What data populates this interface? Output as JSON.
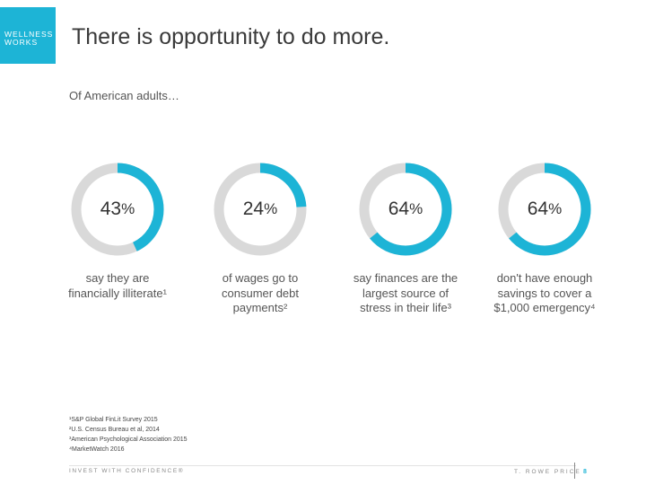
{
  "brand": {
    "line1": "WELLNESS",
    "line2": "WORKS"
  },
  "title": "There is opportunity to do more.",
  "subtitle": "Of American adults…",
  "colors": {
    "accent": "#1db4d6",
    "track": "#d9d9d9"
  },
  "chart_data": {
    "type": "donut",
    "series": [
      {
        "value": 43,
        "label": "43",
        "unit": "%",
        "description": "say they are\nfinancially illiterate¹"
      },
      {
        "value": 24,
        "label": "24",
        "unit": "%",
        "description": "of wages go to\nconsumer debt\npayments²"
      },
      {
        "value": 64,
        "label": "64",
        "unit": "%",
        "description": "say finances are the\nlargest source of\nstress in their life³"
      },
      {
        "value": 64,
        "label": "64",
        "unit": "%",
        "description": "don't have enough\nsavings to cover a\n$1,000 emergency⁴"
      }
    ]
  },
  "footnotes": [
    "¹S&P Global FinLit Survey 2015",
    "²U.S. Census Bureau et al, 2014",
    "³American Psychological Association 2015",
    "⁴MarketWatch 2016"
  ],
  "footer": {
    "tagline": "INVEST WITH CONFIDENCE®",
    "company": "T. ROWE PRICE",
    "page": "8"
  }
}
